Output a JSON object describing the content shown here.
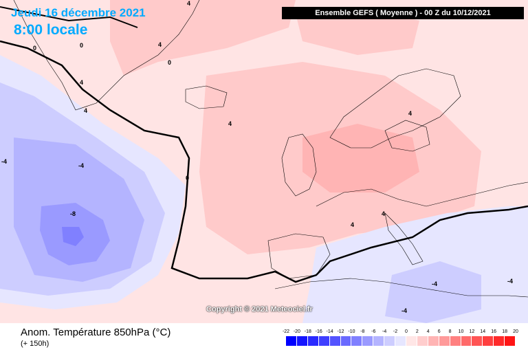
{
  "header": {
    "date": "Jeudi 16 décembre 2021",
    "time": "8:00 locale",
    "run": "Ensemble GEFS  ( Moyenne )  -  00 Z du 10/12/2021"
  },
  "copyright": "Copyright © 2021 Meteociel.fr",
  "footer": {
    "title": "Anom. Température 850hPa (°C)",
    "subtitle": "(+ 150h)"
  },
  "legend": {
    "ticks": [
      "-22",
      "-20",
      "-18",
      "-16",
      "-14",
      "-12",
      "-10",
      "-8",
      "-6",
      "-4",
      "-2",
      "0",
      "2",
      "4",
      "6",
      "8",
      "10",
      "12",
      "14",
      "16",
      "18",
      "20"
    ],
    "colors": [
      "#0000ff",
      "#1515ff",
      "#2a2aff",
      "#3f3fff",
      "#5454ff",
      "#6a6aff",
      "#8080ff",
      "#9a9aff",
      "#b4b4ff",
      "#cdcdff",
      "#e6e6ff",
      "#ffe6e6",
      "#ffcdcd",
      "#ffb4b4",
      "#ff9a9a",
      "#ff8080",
      "#ff6a6a",
      "#ff5454",
      "#ff3f3f",
      "#ff2a2a",
      "#ff1515"
    ]
  },
  "map_labels": {
    "zero": "0",
    "four": "4",
    "minus_four": "-4",
    "minus_eight": "-8"
  },
  "colors": {
    "title_blue": "#00aaff",
    "warm_light": "#ffe0e0",
    "warm": "#ffcaca",
    "warm_strong": "#ffb4b4",
    "cold_light": "#e6e6ff",
    "cold": "#cdcdff",
    "cold_strong": "#9a9aff",
    "cold_core": "#8080ff"
  }
}
